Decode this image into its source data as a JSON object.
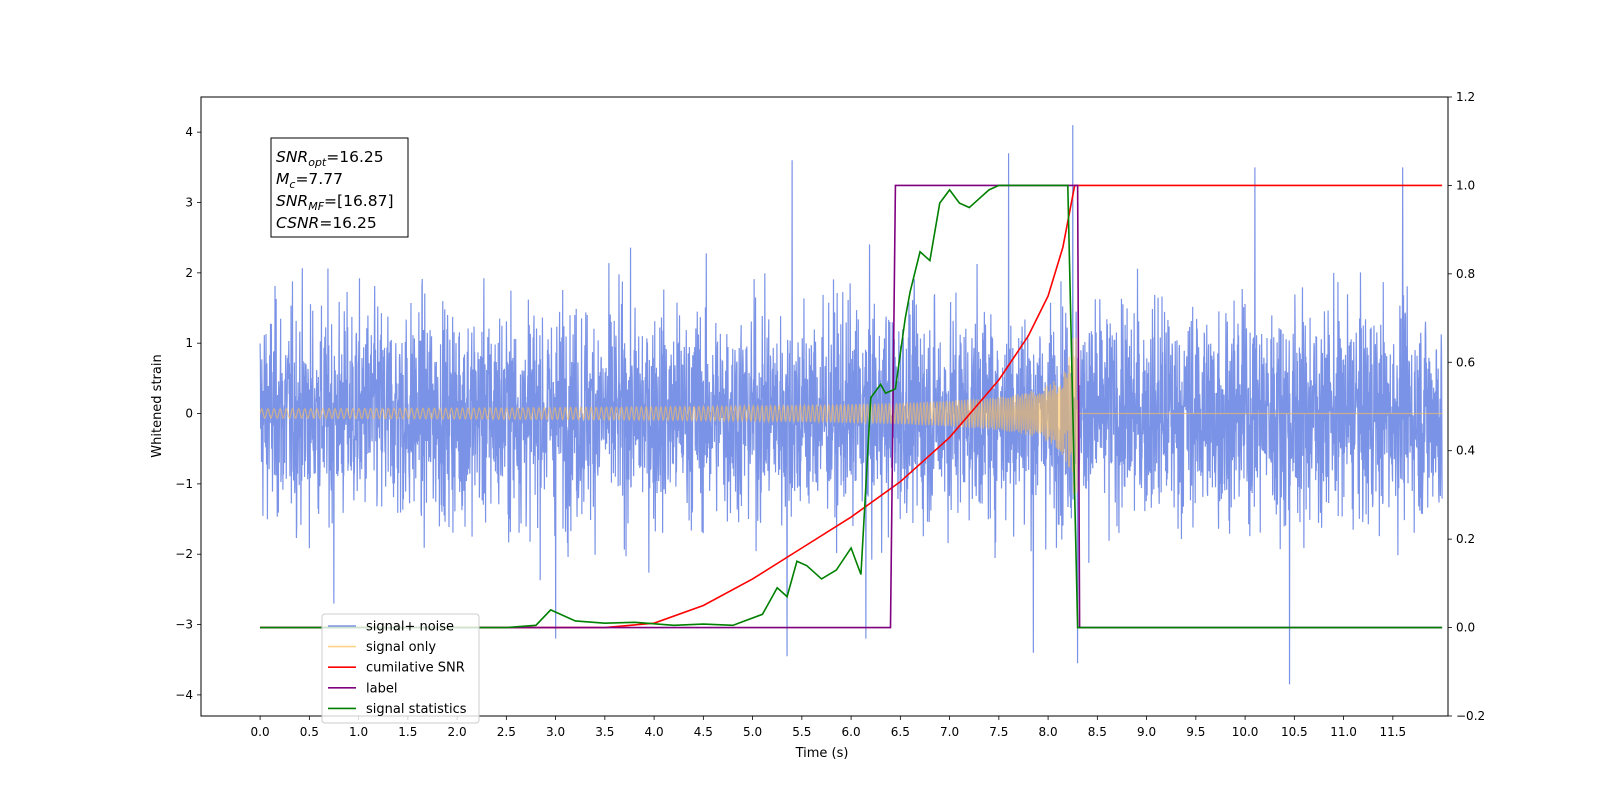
{
  "chart_data": {
    "type": "line",
    "xlabel": "Time (s)",
    "ylabel": "Whitened strain",
    "xlim": [
      -0.6,
      12.06
    ],
    "ylim": [
      -4.3,
      4.5
    ],
    "y2lim": [
      -0.2,
      1.2
    ],
    "x_ticks": [
      0.0,
      0.5,
      1.0,
      1.5,
      2.0,
      2.5,
      3.0,
      3.5,
      4.0,
      4.5,
      5.0,
      5.5,
      6.0,
      6.5,
      7.0,
      7.5,
      8.0,
      8.5,
      9.0,
      9.5,
      10.0,
      10.5,
      11.0,
      11.5
    ],
    "x_tick_labels": [
      "0.0",
      "0.5",
      "1.0",
      "1.5",
      "2.0",
      "2.5",
      "3.0",
      "3.5",
      "4.0",
      "4.5",
      "5.0",
      "5.5",
      "6.0",
      "6.5",
      "7.0",
      "7.5",
      "8.0",
      "8.5",
      "9.0",
      "9.5",
      "10.0",
      "10.5",
      "11.0",
      "11.5"
    ],
    "y_ticks": [
      -4,
      -3,
      -2,
      -1,
      0,
      1,
      2,
      3,
      4
    ],
    "y_tick_labels": [
      "−4",
      "−3",
      "−2",
      "−1",
      "0",
      "1",
      "2",
      "3",
      "4"
    ],
    "y2_ticks": [
      -0.2,
      0.0,
      0.2,
      0.4,
      0.6,
      0.8,
      1.0,
      1.2
    ],
    "y2_tick_labels": [
      "−0.2",
      "0.0",
      "0.2",
      "0.4",
      "0.6",
      "0.8",
      "1.0",
      "1.2"
    ],
    "grid": false,
    "legend_position": "bottom-left",
    "annotation": {
      "lines": [
        {
          "base": "SNR",
          "sub": "opt",
          "value": "=16.25"
        },
        {
          "base": "M",
          "sub": "c",
          "value": "=7.77"
        },
        {
          "base": "SNR",
          "sub": "MF",
          "value": "=[16.87]"
        },
        {
          "base": "CSNR",
          "sub": "",
          "value": "=16.25"
        }
      ]
    },
    "series": [
      {
        "name": "signal+ noise",
        "color": "#7b93e6",
        "axis": "left",
        "description": "noise-dominated whitened strain, approx. ±2 with spikes up to about 4.1; spans 0–12 s",
        "x_range": [
          0.0,
          12.0
        ],
        "amplitude_sigma": 0.75,
        "spikes": [
          [
            0.75,
            -2.7
          ],
          [
            3.0,
            -3.2
          ],
          [
            5.35,
            -3.45
          ],
          [
            5.4,
            3.6
          ],
          [
            7.6,
            3.7
          ],
          [
            7.85,
            -3.4
          ],
          [
            8.25,
            4.1
          ],
          [
            8.3,
            -3.55
          ],
          [
            10.1,
            3.5
          ],
          [
            10.45,
            -3.85
          ],
          [
            11.6,
            3.5
          ],
          [
            6.15,
            -3.2
          ]
        ]
      },
      {
        "name": "signal only",
        "color": "#ffbf5a",
        "axis": "left",
        "description": "chirp waveform growing from ~0 at 3.5 s to ±1.1 at 8.2 s, ending near 8.3 s",
        "x_range": [
          0.0,
          12.0
        ],
        "merger_time": 8.3
      },
      {
        "name": "cumilative SNR",
        "color": "#ff0000",
        "axis": "right",
        "x": [
          0.0,
          3.5,
          4.0,
          4.5,
          5.0,
          5.5,
          6.0,
          6.5,
          7.0,
          7.5,
          7.8,
          8.0,
          8.15,
          8.27,
          8.28,
          12.0
        ],
        "y": [
          0.0,
          0.0,
          0.01,
          0.05,
          0.11,
          0.18,
          0.25,
          0.33,
          0.43,
          0.56,
          0.66,
          0.75,
          0.86,
          1.0,
          1.0,
          1.0
        ]
      },
      {
        "name": "label",
        "color": "#800080",
        "axis": "right",
        "x": [
          0.0,
          6.4,
          6.45,
          8.3,
          8.32,
          12.0
        ],
        "y": [
          0.0,
          0.0,
          1.0,
          1.0,
          0.0,
          0.0
        ]
      },
      {
        "name": "signal statistics",
        "color": "#008000",
        "axis": "right",
        "x": [
          0.0,
          2.5,
          2.8,
          2.95,
          3.2,
          3.5,
          3.8,
          4.2,
          4.5,
          4.8,
          5.1,
          5.25,
          5.35,
          5.45,
          5.55,
          5.7,
          5.85,
          6.0,
          6.1,
          6.2,
          6.3,
          6.35,
          6.45,
          6.55,
          6.6,
          6.7,
          6.8,
          6.9,
          7.0,
          7.1,
          7.2,
          7.3,
          7.4,
          7.5,
          8.0,
          8.2,
          8.3,
          12.0
        ],
        "y": [
          0.0,
          0.0,
          0.005,
          0.04,
          0.015,
          0.01,
          0.012,
          0.005,
          0.008,
          0.005,
          0.03,
          0.09,
          0.07,
          0.15,
          0.14,
          0.11,
          0.13,
          0.18,
          0.12,
          0.52,
          0.55,
          0.53,
          0.54,
          0.7,
          0.76,
          0.85,
          0.83,
          0.96,
          0.99,
          0.96,
          0.95,
          0.97,
          0.99,
          1.0,
          1.0,
          1.0,
          0.0,
          0.0
        ]
      }
    ]
  }
}
